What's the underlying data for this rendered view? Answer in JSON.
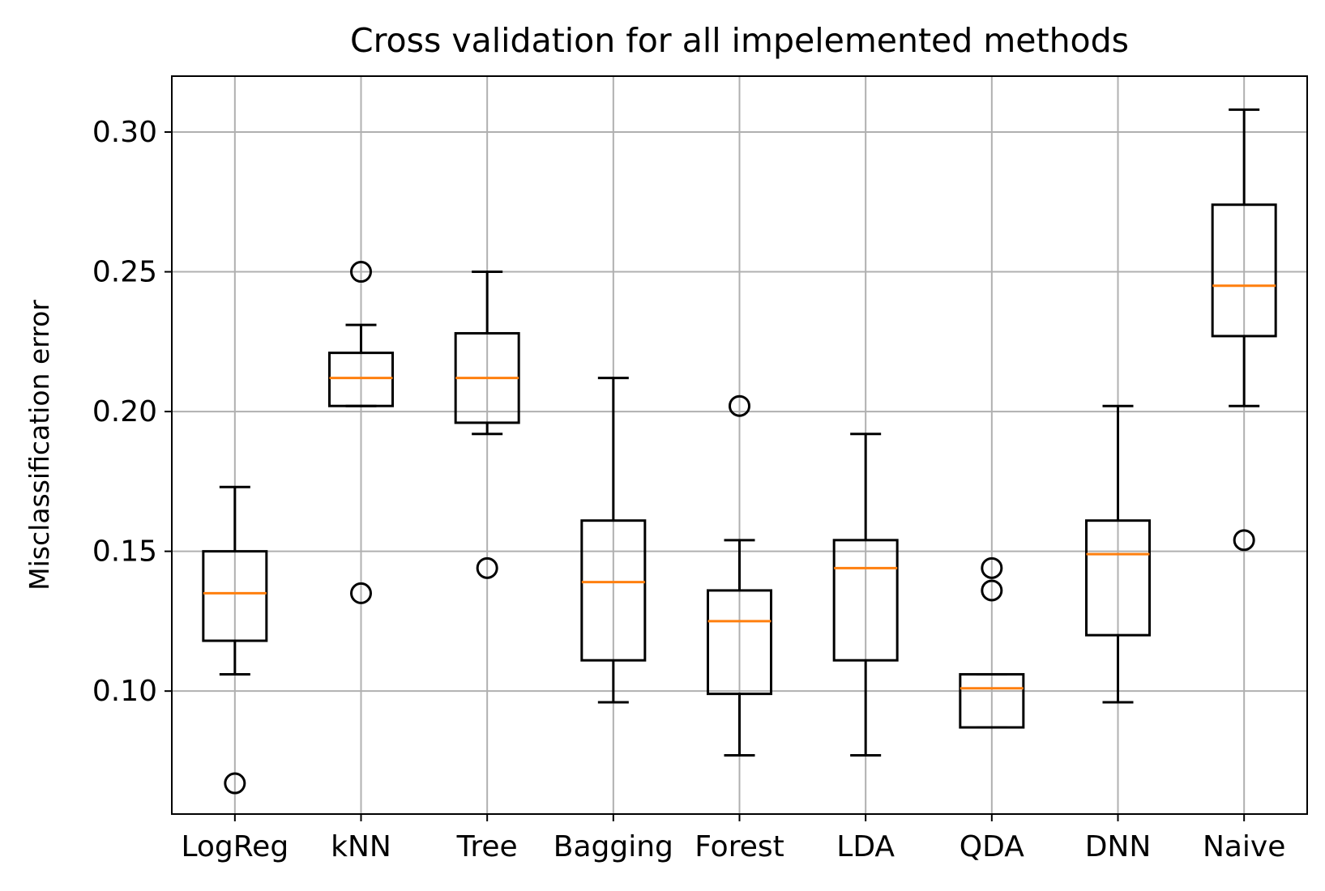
{
  "chart_data": {
    "type": "box",
    "title": "Cross validation for all impelemented methods",
    "xlabel": "",
    "ylabel": "Misclassification error",
    "ylim": [
      0.056,
      0.32
    ],
    "yticks": [
      0.1,
      0.15,
      0.2,
      0.25,
      0.3
    ],
    "ytick_labels": [
      "0.10",
      "0.15",
      "0.20",
      "0.25",
      "0.30"
    ],
    "grid": true,
    "colors": {
      "box": "#000000",
      "median": "#ff7f0e",
      "grid": "#b0b0b0",
      "background": "#ffffff"
    },
    "categories": [
      "LogReg",
      "kNN",
      "Tree",
      "Bagging",
      "Forest",
      "LDA",
      "QDA",
      "DNN",
      "Naive"
    ],
    "series": [
      {
        "category": "LogReg",
        "whisker_low": 0.106,
        "q1": 0.118,
        "median": 0.135,
        "q3": 0.15,
        "whisker_high": 0.173,
        "outliers": [
          0.067
        ]
      },
      {
        "category": "kNN",
        "whisker_low": 0.202,
        "q1": 0.202,
        "median": 0.212,
        "q3": 0.221,
        "whisker_high": 0.231,
        "outliers": [
          0.25,
          0.135
        ]
      },
      {
        "category": "Tree",
        "whisker_low": 0.192,
        "q1": 0.196,
        "median": 0.212,
        "q3": 0.228,
        "whisker_high": 0.25,
        "outliers": [
          0.144
        ]
      },
      {
        "category": "Bagging",
        "whisker_low": 0.096,
        "q1": 0.111,
        "median": 0.139,
        "q3": 0.161,
        "whisker_high": 0.212,
        "outliers": []
      },
      {
        "category": "Forest",
        "whisker_low": 0.077,
        "q1": 0.099,
        "median": 0.125,
        "q3": 0.136,
        "whisker_high": 0.154,
        "outliers": [
          0.202
        ]
      },
      {
        "category": "LDA",
        "whisker_low": 0.077,
        "q1": 0.111,
        "median": 0.144,
        "q3": 0.154,
        "whisker_high": 0.192,
        "outliers": []
      },
      {
        "category": "QDA",
        "whisker_low": 0.087,
        "q1": 0.087,
        "median": 0.101,
        "q3": 0.106,
        "whisker_high": 0.106,
        "outliers": [
          0.144,
          0.136
        ]
      },
      {
        "category": "DNN",
        "whisker_low": 0.096,
        "q1": 0.12,
        "median": 0.149,
        "q3": 0.161,
        "whisker_high": 0.202,
        "outliers": []
      },
      {
        "category": "Naive",
        "whisker_low": 0.202,
        "q1": 0.227,
        "median": 0.245,
        "q3": 0.274,
        "whisker_high": 0.308,
        "outliers": [
          0.154
        ]
      }
    ]
  }
}
